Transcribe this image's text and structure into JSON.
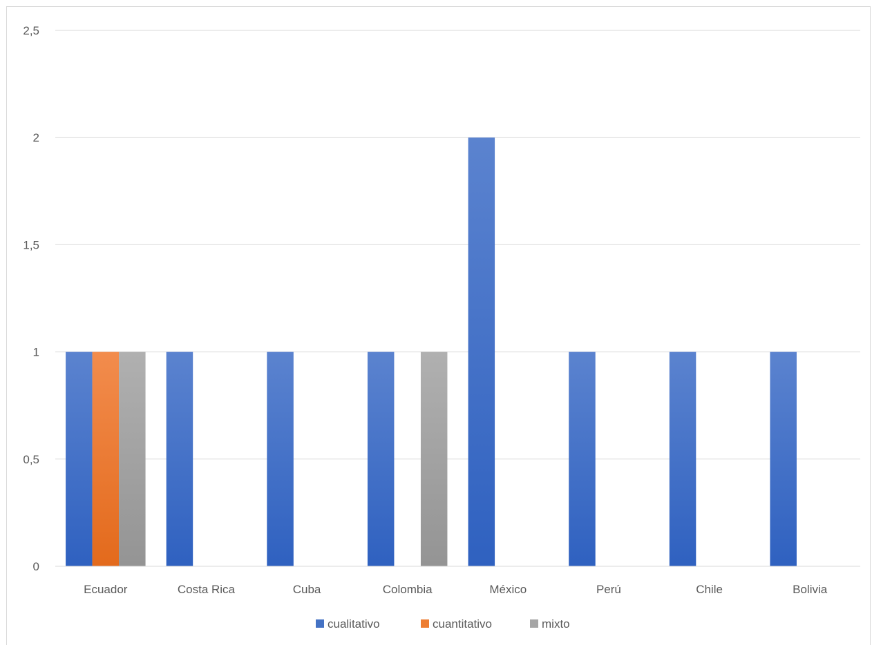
{
  "chart_data": {
    "type": "bar",
    "categories": [
      "Ecuador",
      "Costa Rica",
      "Cuba",
      "Colombia",
      "México",
      "Perú",
      "Chile",
      "Bolivia"
    ],
    "series": [
      {
        "name": "cualitativo",
        "color": "#4472c4",
        "values": [
          1,
          1,
          1,
          1,
          2,
          1,
          1,
          1
        ]
      },
      {
        "name": "cuantitativo",
        "color": "#ed7d31",
        "values": [
          1,
          0,
          0,
          0,
          0,
          0,
          0,
          0
        ]
      },
      {
        "name": "mixto",
        "color": "#a5a5a5",
        "values": [
          1,
          0,
          0,
          1,
          0,
          0,
          0,
          0
        ]
      }
    ],
    "y_ticks": [
      "0",
      "0,5",
      "1",
      "1,5",
      "2",
      "2,5"
    ],
    "ylim": [
      0,
      2.5
    ],
    "grid": true,
    "legend": "bottom"
  }
}
